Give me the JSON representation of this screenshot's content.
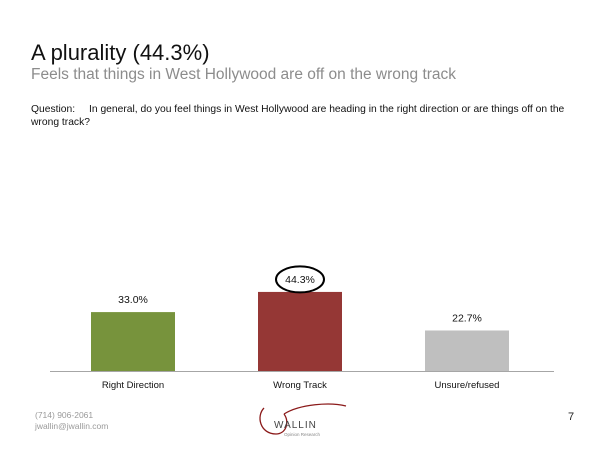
{
  "slide": {
    "title": "A plurality (44.3%)",
    "subtitle": "Feels that things in West Hollywood are off on the wrong track",
    "question_label": "Question:",
    "question_text": "In general, do you feel things in West Hollywood are heading in the right direction or are things off on the wrong track?",
    "page_number": "7"
  },
  "footer": {
    "phone": "(714) 906-2061",
    "email": "jwallin@jwallin.com",
    "logo_text": "WALLIN",
    "logo_subtext": "Opinion Research"
  },
  "chart_data": {
    "type": "bar",
    "categories": [
      "Right Direction",
      "Wrong Track",
      "Unsure/refused"
    ],
    "values": [
      33.0,
      44.3,
      22.7
    ],
    "value_labels": [
      "33.0%",
      "44.3%",
      "22.7%"
    ],
    "colors": [
      "#77933c",
      "#953735",
      "#bfbfbf"
    ],
    "ylim": [
      0,
      50
    ],
    "highlighted_category": "Wrong Track",
    "grid": false,
    "xlabel": "",
    "ylabel": ""
  }
}
